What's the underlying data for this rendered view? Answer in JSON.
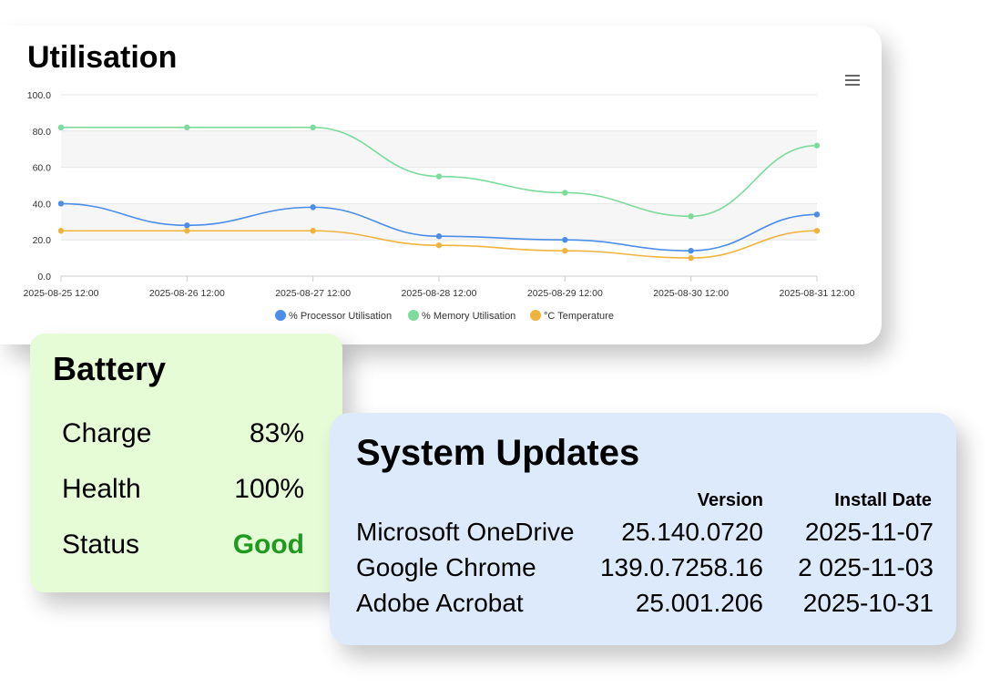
{
  "utilisation": {
    "title": "Utilisation",
    "menu_icon": "hamburger-menu-icon"
  },
  "chart_data": {
    "type": "line",
    "categories": [
      "2025-08-25 12:00",
      "2025-08-26 12:00",
      "2025-08-27 12:00",
      "2025-08-28 12:00",
      "2025-08-29 12:00",
      "2025-08-30 12:00",
      "2025-08-31 12:00"
    ],
    "ylim": [
      0,
      100
    ],
    "yticks": [
      "0.0",
      "20.0",
      "40.0",
      "60.0",
      "80.0",
      "100.0"
    ],
    "grid": true,
    "legend_position": "bottom",
    "series": [
      {
        "name": "% Processor Utilisation",
        "color": "#4a8ee8",
        "values": [
          40,
          28,
          38,
          22,
          20,
          14,
          34
        ]
      },
      {
        "name": "% Memory Utilisation",
        "color": "#7ddb9c",
        "values": [
          82,
          82,
          82,
          55,
          46,
          33,
          72
        ]
      },
      {
        "name": "°C Temperature",
        "color": "#f0b43e",
        "values": [
          25,
          25,
          25,
          17,
          14,
          10,
          25
        ]
      }
    ]
  },
  "battery": {
    "title": "Battery",
    "rows": [
      {
        "label": "Charge",
        "value": "83%"
      },
      {
        "label": "Health",
        "value": "100%"
      },
      {
        "label": "Status",
        "value": "Good"
      }
    ],
    "status_color": "#1e9a1e"
  },
  "updates": {
    "title": "System Updates",
    "headers": {
      "version": "Version",
      "install_date": "Install Date"
    },
    "rows": [
      {
        "name": "Microsoft OneDrive",
        "version": "25.140.0720",
        "date": "2025-11-07"
      },
      {
        "name": "Google Chrome",
        "version": "139.0.7258.16",
        "date": "2 025-11-03"
      },
      {
        "name": "Adobe Acrobat",
        "version": "25.001.206",
        "date": "2025-10-31"
      }
    ]
  }
}
